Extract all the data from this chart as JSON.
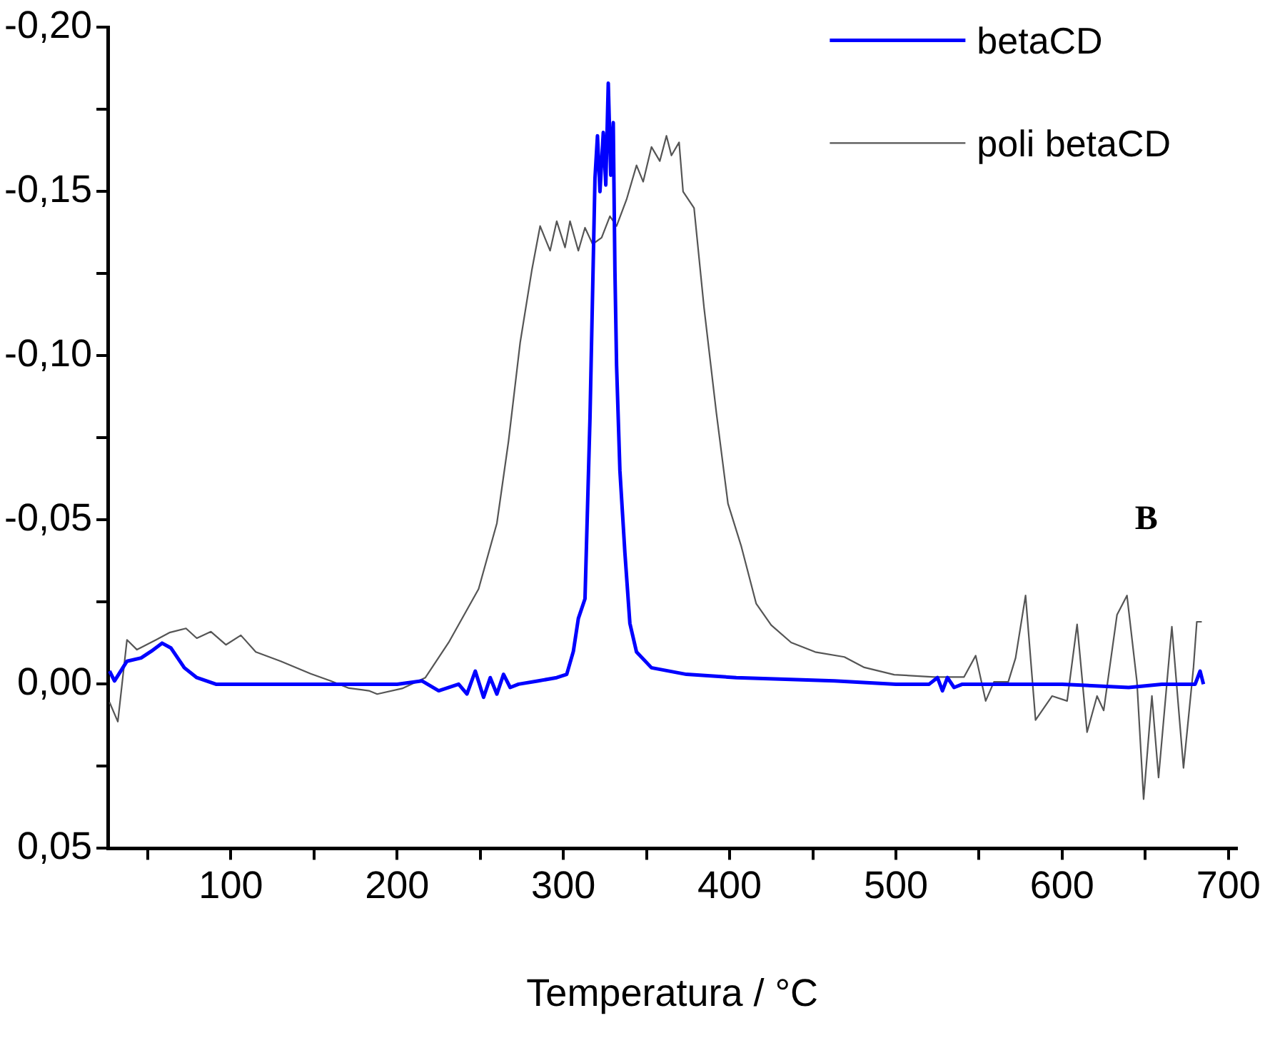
{
  "chart_data": {
    "type": "line",
    "xlabel": "Temperatura / °C",
    "annotations": [
      "B"
    ],
    "xlim": [
      26,
      705
    ],
    "ylim": [
      0.05,
      -0.2
    ],
    "xticks": [
      {
        "value": 50,
        "label": null
      },
      100,
      {
        "value": 150,
        "label": null
      },
      200,
      {
        "value": 250,
        "label": null
      },
      300,
      {
        "value": 350,
        "label": null
      },
      400,
      {
        "value": 450,
        "label": null
      },
      500,
      {
        "value": 550,
        "label": null
      },
      600,
      {
        "value": 650,
        "label": null
      },
      700
    ],
    "yticks": [
      {
        "value": -0.2,
        "label": "-0,20"
      },
      {
        "value": -0.175,
        "label": null
      },
      {
        "value": -0.15,
        "label": "-0,15"
      },
      {
        "value": -0.125,
        "label": null
      },
      {
        "value": -0.1,
        "label": "-0,10"
      },
      {
        "value": -0.075,
        "label": null
      },
      {
        "value": -0.05,
        "label": "-0,05"
      },
      {
        "value": -0.025,
        "label": null
      },
      {
        "value": 0,
        "label": "0,00"
      },
      {
        "value": 0.025,
        "label": null
      },
      {
        "value": 0.05,
        "label": "0,05"
      }
    ],
    "grid": false,
    "legend": "top right",
    "marker": "none",
    "line_style": "solid",
    "series": [
      {
        "name": "betaCD",
        "color": "#0000ff",
        "x": [
          27,
          30,
          37.5,
          46,
          52,
          58.6,
          64,
          72,
          79.5,
          91,
          120,
          150,
          180,
          200,
          215,
          225,
          237,
          242,
          247,
          252,
          256,
          260,
          264,
          268,
          273,
          285,
          296,
          302,
          306,
          309,
          313,
          316,
          319,
          320.5,
          322,
          324,
          325.5,
          327,
          328.5,
          330,
          331,
          332,
          334,
          337,
          340,
          344,
          353,
          374,
          404,
          463,
          500,
          520,
          525,
          528,
          531,
          535,
          540,
          600,
          640,
          660,
          680,
          683,
          685
        ],
        "values": [
          -0.004,
          -0.001,
          -0.007,
          -0.008,
          -0.01,
          -0.0125,
          -0.011,
          -0.005,
          -0.002,
          0,
          0,
          0,
          0,
          0,
          -0.001,
          0.002,
          0,
          0.003,
          -0.004,
          0.004,
          -0.002,
          0.003,
          -0.003,
          0.001,
          0,
          -0.001,
          -0.002,
          -0.003,
          -0.01,
          -0.02,
          -0.026,
          -0.081,
          -0.154,
          -0.167,
          -0.15,
          -0.168,
          -0.152,
          -0.183,
          -0.155,
          -0.171,
          -0.126,
          -0.097,
          -0.065,
          -0.04,
          -0.0185,
          -0.0098,
          -0.005,
          -0.003,
          -0.002,
          -0.001,
          0,
          0,
          -0.002,
          0.002,
          -0.002,
          0.001,
          0,
          0,
          0.001,
          0,
          0,
          -0.004,
          0
        ]
      },
      {
        "name": "poli betaCD",
        "color": "#555555",
        "x": [
          27,
          32,
          37.5,
          43.5,
          55,
          63,
          73,
          79.5,
          88,
          97,
          106,
          115,
          130,
          148,
          160,
          171,
          183,
          188,
          203,
          217,
          231,
          249,
          260,
          267,
          274,
          281,
          286,
          292,
          296,
          301,
          304,
          309,
          313,
          317.6,
          323,
          328,
          332,
          338,
          344,
          348,
          353,
          358,
          362,
          365,
          369.6,
          372,
          378.6,
          384.6,
          392,
          399,
          407,
          416,
          425,
          437,
          451.5,
          469,
          481,
          499,
          523,
          541,
          548,
          554,
          559,
          567.6,
          572,
          578,
          584,
          588,
          594,
          603,
          609,
          615,
          621,
          625,
          633,
          639,
          645,
          649,
          654,
          658,
          666,
          673,
          679,
          681,
          684
        ],
        "values": [
          0.0055,
          0.0114,
          -0.0135,
          -0.0105,
          -0.0135,
          -0.0157,
          -0.017,
          -0.014,
          -0.016,
          -0.012,
          -0.0149,
          -0.0098,
          -0.007,
          -0.0032,
          -0.001,
          0.0012,
          0.002,
          0.003,
          0.0013,
          -0.002,
          -0.0127,
          -0.029,
          -0.049,
          -0.074,
          -0.104,
          -0.126,
          -0.1395,
          -0.132,
          -0.141,
          -0.133,
          -0.141,
          -0.132,
          -0.139,
          -0.134,
          -0.136,
          -0.1425,
          -0.1395,
          -0.1476,
          -0.158,
          -0.153,
          -0.1636,
          -0.1593,
          -0.167,
          -0.161,
          -0.165,
          -0.15,
          -0.145,
          -0.1147,
          -0.0827,
          -0.055,
          -0.042,
          -0.0245,
          -0.018,
          -0.0127,
          -0.0098,
          -0.0083,
          -0.0051,
          -0.0029,
          -0.0022,
          -0.0022,
          -0.0087,
          0.0051,
          -0.0007,
          -0.0007,
          -0.008,
          -0.027,
          0.0109,
          0.008,
          0.0036,
          0.0051,
          -0.0182,
          0.0146,
          0.0036,
          0.008,
          -0.0211,
          -0.027,
          -0.0007,
          0.035,
          0.0036,
          0.0284,
          -0.0175,
          0.0255,
          -0.0051,
          -0.019,
          -0.019
        ]
      }
    ]
  }
}
